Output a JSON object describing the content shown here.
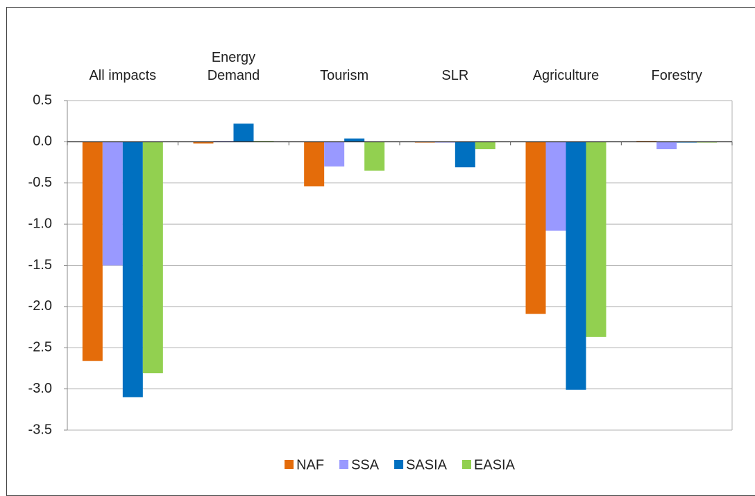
{
  "chart_data": {
    "type": "bar",
    "categories": [
      "All impacts",
      "Energy\nDemand",
      "Tourism",
      "SLR",
      "Agriculture",
      "Forestry"
    ],
    "series": [
      {
        "name": "NAF",
        "color": "#e46c0a",
        "values": [
          -2.66,
          -0.02,
          -0.54,
          -0.01,
          -2.09,
          0.01
        ]
      },
      {
        "name": "SSA",
        "color": "#9999ff",
        "values": [
          -1.5,
          0.01,
          -0.3,
          -0.01,
          -1.08,
          -0.09
        ]
      },
      {
        "name": "SASIA",
        "color": "#0070c0",
        "values": [
          -3.1,
          0.22,
          0.04,
          -0.31,
          -3.01,
          -0.01
        ]
      },
      {
        "name": "EASIA",
        "color": "#92d050",
        "values": [
          -2.81,
          0.01,
          -0.35,
          -0.09,
          -2.37,
          -0.01
        ]
      }
    ],
    "ylim": [
      -3.5,
      0.5
    ],
    "yticks": [
      0.5,
      {
        "value": 0,
        "label": "0.0"
      },
      -0.5,
      {
        "value": -1,
        "label": "-1.0"
      },
      -1.5,
      {
        "value": -2,
        "label": "-2.0"
      },
      -2.5,
      {
        "value": -3,
        "label": "-3.0"
      },
      -3.5
    ],
    "grid": true,
    "legend": "bottom"
  }
}
